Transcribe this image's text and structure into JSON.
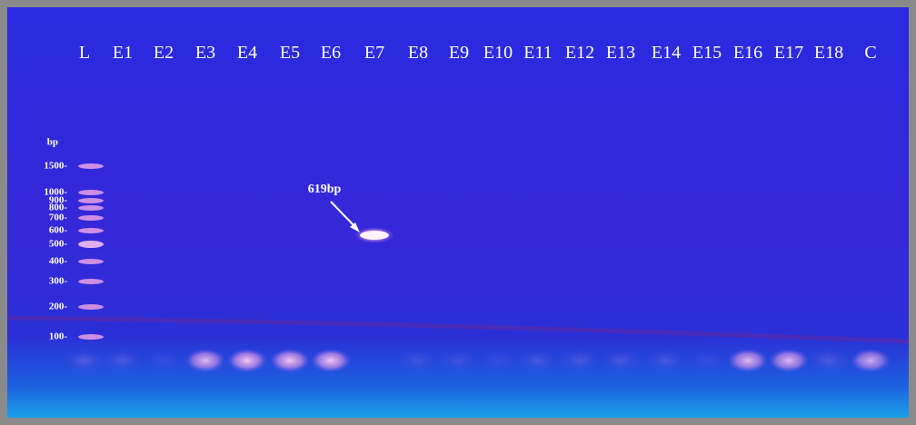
{
  "lanes": [
    "L",
    "E1",
    "E2",
    "E3",
    "E4",
    "E5",
    "E6",
    "E7",
    "E8",
    "E9",
    "E10",
    "E11",
    "E12",
    "E13",
    "E14",
    "E15",
    "E16",
    "E17",
    "E18",
    "C"
  ],
  "ladder": {
    "unit": "bp",
    "labels": [
      "1500-",
      "1000-",
      "900-",
      "800-",
      "700-",
      "600-",
      "500-",
      "400-",
      "300-",
      "200-",
      "100-"
    ]
  },
  "annotation": "619bp"
}
